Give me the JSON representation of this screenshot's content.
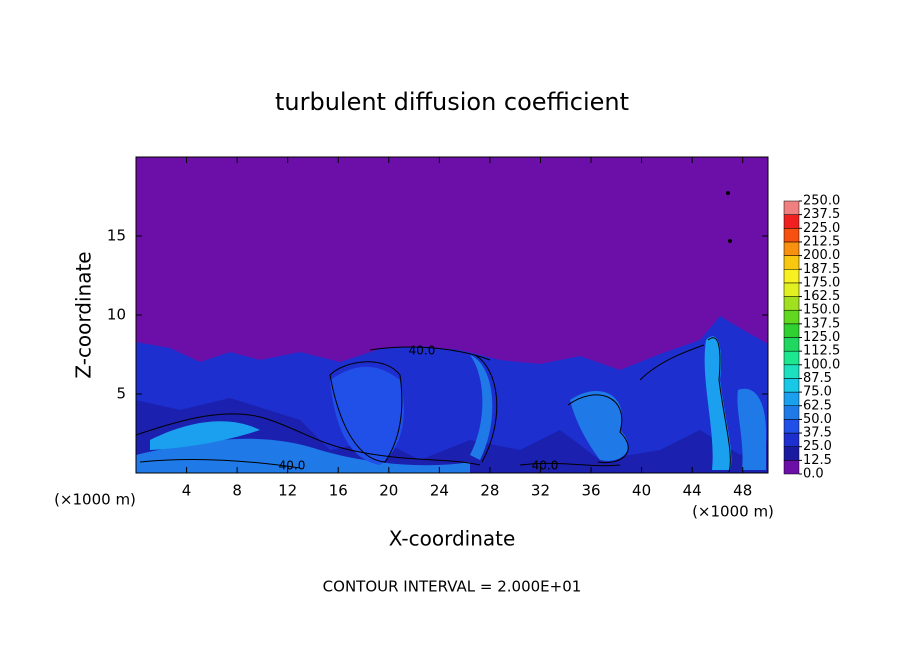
{
  "chart_data": {
    "type": "contour",
    "title": "turbulent diffusion coefficient",
    "x_label": "X-coordinate",
    "y_label": "Z-coordinate",
    "x_unit": "(×1000 m)",
    "y_unit": "(×1000 m)",
    "footer": "CONTOUR INTERVAL = 2.000E+01",
    "annotations": [
      "40.0",
      "40.0",
      "40.0"
    ],
    "xlim": [
      0,
      50
    ],
    "xticks": [
      4,
      8,
      12,
      16,
      20,
      24,
      28,
      32,
      36,
      40,
      44,
      48
    ],
    "ylim": [
      0,
      20
    ],
    "yticks": [
      5,
      10,
      15
    ],
    "colorbar": {
      "ticks": [
        {
          "value": 0,
          "label": "0.0"
        },
        {
          "value": 12.5,
          "label": "12.5"
        },
        {
          "value": 25,
          "label": "25.0"
        },
        {
          "value": 37.5,
          "label": "37.5"
        },
        {
          "value": 50,
          "label": "50.0"
        },
        {
          "value": 62.5,
          "label": "62.5"
        },
        {
          "value": 75,
          "label": "75.0"
        },
        {
          "value": 87.5,
          "label": "87.5"
        },
        {
          "value": 100,
          "label": "100.0"
        },
        {
          "value": 112.5,
          "label": "112.5"
        },
        {
          "value": 125,
          "label": "125.0"
        },
        {
          "value": 137.5,
          "label": "137.5"
        },
        {
          "value": 150,
          "label": "150.0"
        },
        {
          "value": 162.5,
          "label": "162.5"
        },
        {
          "value": 175,
          "label": "175.0"
        },
        {
          "value": 187.5,
          "label": "187.5"
        },
        {
          "value": 200,
          "label": "200.0"
        },
        {
          "value": 212.5,
          "label": "212.5"
        },
        {
          "value": 225,
          "label": "225.0"
        },
        {
          "value": 237.5,
          "label": "237.5"
        },
        {
          "value": 250,
          "label": "250.0"
        }
      ],
      "colors": [
        "#6c0fa8",
        "#1a1aa0",
        "#1e2fcf",
        "#2050e8",
        "#1f7ae8",
        "#1aa0ee",
        "#19c8e6",
        "#1ce0c0",
        "#1de890",
        "#20d860",
        "#30d030",
        "#60d820",
        "#a0e020",
        "#e0f020",
        "#f8f020",
        "#f8c810",
        "#f89010",
        "#f85010",
        "#f02020",
        "#f08080"
      ]
    }
  }
}
